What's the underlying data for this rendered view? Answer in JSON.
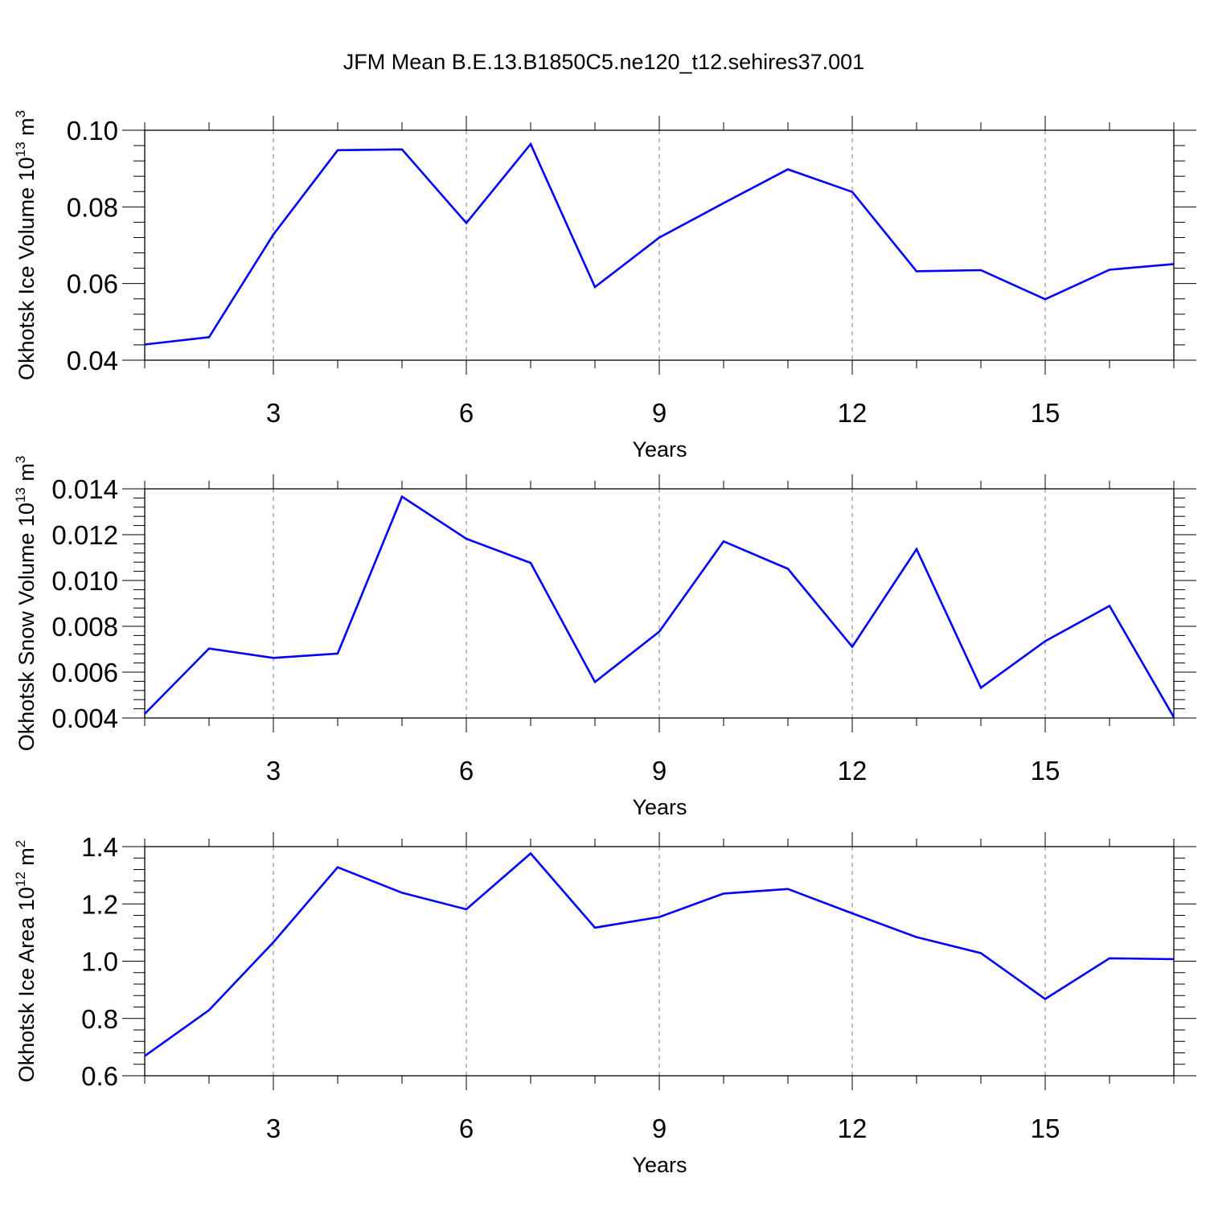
{
  "figure_title": "JFM Mean B.E.13.B1850C5.ne120_t12.sehires37.001",
  "line_color": "#0000ff",
  "grid_color": "#808080",
  "chart_data": [
    {
      "type": "line",
      "title": "",
      "xlabel": "Years",
      "ylabel": {
        "prefix": "Okhotsk Ice Volume 10",
        "exp": "13",
        "unit": " m",
        "unit_exp": "3"
      },
      "xlim": [
        1,
        17
      ],
      "ylim": [
        0.04,
        0.1
      ],
      "xticks": [
        3,
        6,
        9,
        12,
        15
      ],
      "xtick_labels": [
        "3",
        "6",
        "9",
        "12",
        "15"
      ],
      "yticks": [
        0.04,
        0.06,
        0.08,
        0.1
      ],
      "ytick_labels": [
        "0.04",
        "0.06",
        "0.08",
        "0.10"
      ],
      "grid": "vertical dashed at major x ticks",
      "series": [
        {
          "name": "Okhotsk Ice Volume",
          "x": [
            1,
            2,
            3,
            4,
            5,
            6,
            7,
            8,
            9,
            10,
            11,
            12,
            13,
            14,
            15,
            16,
            17
          ],
          "values": [
            0.0441,
            0.046,
            0.0728,
            0.0948,
            0.095,
            0.0758,
            0.0964,
            0.0591,
            0.072,
            0.081,
            0.0898,
            0.0839,
            0.0632,
            0.0635,
            0.0559,
            0.0636,
            0.0651
          ]
        }
      ]
    },
    {
      "type": "line",
      "title": "",
      "xlabel": "Years",
      "ylabel": {
        "prefix": "Okhotsk Snow Volume 10",
        "exp": "13",
        "unit": " m",
        "unit_exp": "3"
      },
      "xlim": [
        1,
        17
      ],
      "ylim": [
        0.004,
        0.014
      ],
      "xticks": [
        3,
        6,
        9,
        12,
        15
      ],
      "xtick_labels": [
        "3",
        "6",
        "9",
        "12",
        "15"
      ],
      "yticks": [
        0.004,
        0.006,
        0.008,
        0.01,
        0.012,
        0.014
      ],
      "ytick_labels": [
        "0.004",
        "0.006",
        "0.008",
        "0.010",
        "0.012",
        "0.014"
      ],
      "grid": "vertical dashed at major x ticks",
      "series": [
        {
          "name": "Okhotsk Snow Volume",
          "x": [
            1,
            2,
            3,
            4,
            5,
            6,
            7,
            8,
            9,
            10,
            11,
            12,
            13,
            14,
            15,
            16,
            17
          ],
          "values": [
            0.00418,
            0.00703,
            0.00662,
            0.00681,
            0.01366,
            0.01182,
            0.01077,
            0.00557,
            0.00777,
            0.01171,
            0.01051,
            0.00711,
            0.01137,
            0.00532,
            0.00735,
            0.00889,
            0.00403
          ]
        }
      ]
    },
    {
      "type": "line",
      "title": "",
      "xlabel": "Years",
      "ylabel": {
        "prefix": "Okhotsk Ice Area 10",
        "exp": "12",
        "unit": " m",
        "unit_exp": "2"
      },
      "xlim": [
        1,
        17
      ],
      "ylim": [
        0.6,
        1.4
      ],
      "xticks": [
        3,
        6,
        9,
        12,
        15
      ],
      "xtick_labels": [
        "3",
        "6",
        "9",
        "12",
        "15"
      ],
      "yticks": [
        0.6,
        0.8,
        1.0,
        1.2,
        1.4
      ],
      "ytick_labels": [
        "0.6",
        "0.8",
        "1.0",
        "1.2",
        "1.4"
      ],
      "grid": "vertical dashed at major x ticks",
      "series": [
        {
          "name": "Okhotsk Ice Area",
          "x": [
            1,
            2,
            3,
            4,
            5,
            6,
            7,
            8,
            9,
            10,
            11,
            12,
            13,
            14,
            15,
            16,
            17
          ],
          "values": [
            0.669,
            0.829,
            1.066,
            1.328,
            1.239,
            1.181,
            1.376,
            1.117,
            1.154,
            1.236,
            1.252,
            1.167,
            1.084,
            1.028,
            0.868,
            1.01,
            1.007
          ]
        }
      ]
    }
  ]
}
